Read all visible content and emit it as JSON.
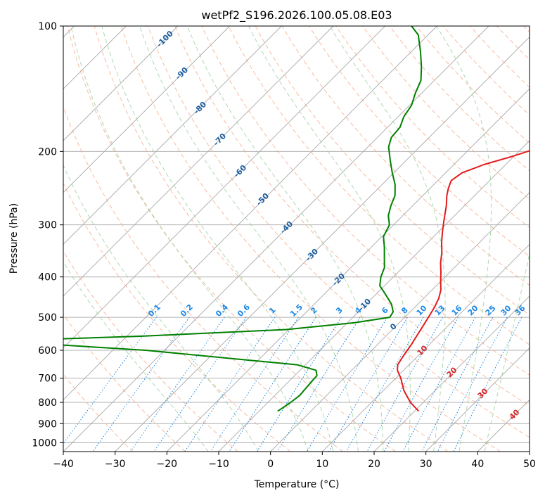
{
  "chart_data": {
    "type": "line",
    "title": "wetPf2_S196.2026.100.05.08.E03",
    "xlabel": "Temperature (°C)",
    "ylabel": "Pressure (hPa)",
    "xlim": [
      -40,
      50
    ],
    "ylim": [
      1050,
      100
    ],
    "x_ticks": [
      -40,
      -30,
      -20,
      -10,
      0,
      10,
      20,
      30,
      40,
      50
    ],
    "y_ticks": [
      100,
      200,
      300,
      400,
      500,
      600,
      700,
      800,
      900,
      1000
    ],
    "x_tick_labels": [
      "−40",
      "−30",
      "−20",
      "−10",
      "0",
      "10",
      "20",
      "30",
      "40",
      "50"
    ],
    "y_tick_labels": [
      "100",
      "200",
      "300",
      "400",
      "500",
      "600",
      "700",
      "800",
      "900",
      "1000"
    ],
    "skew": "isotherms slanted at 45°",
    "series": [
      {
        "name": "Temperature",
        "color": "#e31a1c",
        "points": [
          [
            20.8,
            840
          ],
          [
            17.5,
            800
          ],
          [
            14.0,
            750
          ],
          [
            11.0,
            700
          ],
          [
            8.8,
            670
          ],
          [
            7.8,
            650
          ],
          [
            7.2,
            620
          ],
          [
            6.5,
            580
          ],
          [
            5.8,
            550
          ],
          [
            5.1,
            520
          ],
          [
            4.3,
            490
          ],
          [
            3.7,
            470
          ],
          [
            2.9,
            450
          ],
          [
            1.7,
            430
          ],
          [
            0.0,
            410
          ],
          [
            -1.7,
            390
          ],
          [
            -3.6,
            370
          ],
          [
            -5.3,
            350
          ],
          [
            -7.4,
            330
          ],
          [
            -9.4,
            310
          ],
          [
            -11.4,
            290
          ],
          [
            -13.5,
            270
          ],
          [
            -15.4,
            255
          ],
          [
            -16.5,
            245
          ],
          [
            -17.4,
            235
          ],
          [
            -16.8,
            225
          ],
          [
            -14.2,
            215
          ],
          [
            -10.1,
            205
          ],
          [
            -6.5,
            195
          ],
          [
            -5.5,
            185
          ],
          [
            -4.9,
            175
          ],
          [
            -5.3,
            165
          ],
          [
            -5.8,
            155
          ],
          [
            -6.6,
            145
          ],
          [
            -7.4,
            135
          ],
          [
            -8.6,
            130
          ],
          [
            -10.1,
            125
          ],
          [
            -11.6,
            120
          ],
          [
            -13.7,
            115
          ],
          [
            -16.5,
            110
          ],
          [
            -18.9,
            105
          ],
          [
            -21.5,
            100
          ]
        ]
      },
      {
        "name": "Dewpoint",
        "color": "#008000",
        "points": [
          [
            -6.4,
            840
          ],
          [
            -6.0,
            820
          ],
          [
            -5.6,
            800
          ],
          [
            -5.2,
            770
          ],
          [
            -5.4,
            740
          ],
          [
            -5.6,
            710
          ],
          [
            -5.7,
            690
          ],
          [
            -6.9,
            670
          ],
          [
            -11.6,
            650
          ],
          [
            -24.1,
            630
          ],
          [
            -43.6,
            600
          ],
          [
            -74.0,
            570
          ],
          [
            -47.4,
            555
          ],
          [
            -20.5,
            535
          ],
          [
            -8.6,
            515
          ],
          [
            -2.9,
            500
          ],
          [
            -3.3,
            485
          ],
          [
            -5.1,
            465
          ],
          [
            -8.2,
            440
          ],
          [
            -10.9,
            420
          ],
          [
            -12.4,
            400
          ],
          [
            -13.5,
            380
          ],
          [
            -15.4,
            360
          ],
          [
            -17.4,
            340
          ],
          [
            -19.7,
            320
          ],
          [
            -20.8,
            300
          ],
          [
            -22.8,
            285
          ],
          [
            -24.2,
            270
          ],
          [
            -25.4,
            255
          ],
          [
            -27.5,
            240
          ],
          [
            -30.3,
            225
          ],
          [
            -33.1,
            210
          ],
          [
            -36.0,
            195
          ],
          [
            -37.3,
            185
          ],
          [
            -37.6,
            175
          ],
          [
            -38.9,
            165
          ],
          [
            -39.6,
            155
          ],
          [
            -41.2,
            145
          ],
          [
            -42.6,
            135
          ],
          [
            -45.2,
            125
          ],
          [
            -48.3,
            115
          ],
          [
            -51.9,
            105
          ],
          [
            -54.9,
            100
          ]
        ]
      }
    ],
    "dry_adiabat_labels": [
      "-100",
      "-90",
      "-80",
      "-70",
      "-60",
      "-50",
      "-40",
      "-30",
      "-20",
      "-10",
      "0"
    ],
    "moist_adiabat_labels": [
      "10",
      "20",
      "30",
      "40"
    ],
    "mixing_ratio_labels": [
      "0.1",
      "0.2",
      "0.4",
      "0.6",
      "1",
      "1.5",
      "2",
      "3",
      "4",
      "6",
      "8",
      "10",
      "13",
      "16",
      "20",
      "25",
      "30",
      "36"
    ],
    "colors": {
      "isobar": "#b0b0b0",
      "isotherm": "#a8a8a8",
      "dry_adiabat": "#f4a582",
      "moist_adiabat": "#9bd09b",
      "mixing_ratio": "#1e88e5",
      "dry_label": "#1f5fa0",
      "wet_label": "#d62728",
      "pot_temp_arc": "#d9bfa0"
    }
  }
}
